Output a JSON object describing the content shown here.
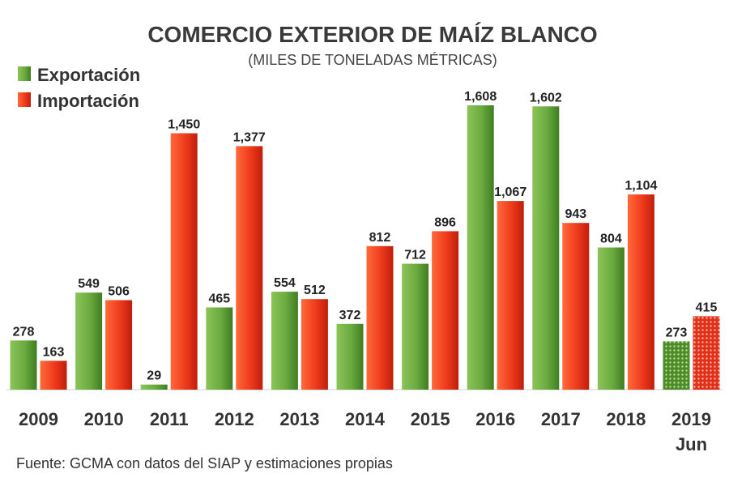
{
  "chart_data": {
    "type": "bar",
    "title": "COMERCIO EXTERIOR DE MAÍZ BLANCO",
    "subtitle": "(MILES DE TONELADAS MÉTRICAS)",
    "categories": [
      "2009",
      "2010",
      "2011",
      "2012",
      "2013",
      "2014",
      "2015",
      "2016",
      "2017",
      "2018",
      "2019"
    ],
    "category_sublabels": [
      "",
      "",
      "",
      "",
      "",
      "",
      "",
      "",
      "",
      "",
      "Jun"
    ],
    "series": [
      {
        "name": "Exportación",
        "values": [
          278,
          549,
          29,
          465,
          554,
          372,
          712,
          1608,
          1602,
          804,
          273
        ],
        "labels": [
          "278",
          "549",
          "29",
          "465",
          "554",
          "372",
          "712",
          "1,608",
          "1,602",
          "804",
          "273"
        ],
        "color": "#6aaa3e"
      },
      {
        "name": "Importación",
        "values": [
          163,
          506,
          1450,
          1377,
          512,
          812,
          896,
          1067,
          943,
          1104,
          415
        ],
        "labels": [
          "163",
          "506",
          "1,450",
          "1,377",
          "512",
          "812",
          "896",
          "1,067",
          "943",
          "1,104",
          "415"
        ],
        "color": "#ee3a1c"
      }
    ],
    "partial_year_category": "2019",
    "ylim": [
      0,
      1608
    ],
    "xlabel": "",
    "ylabel": "",
    "grid": false,
    "legend_position": "top-left",
    "source": "Fuente: GCMA con datos del SIAP y estimaciones propias"
  }
}
